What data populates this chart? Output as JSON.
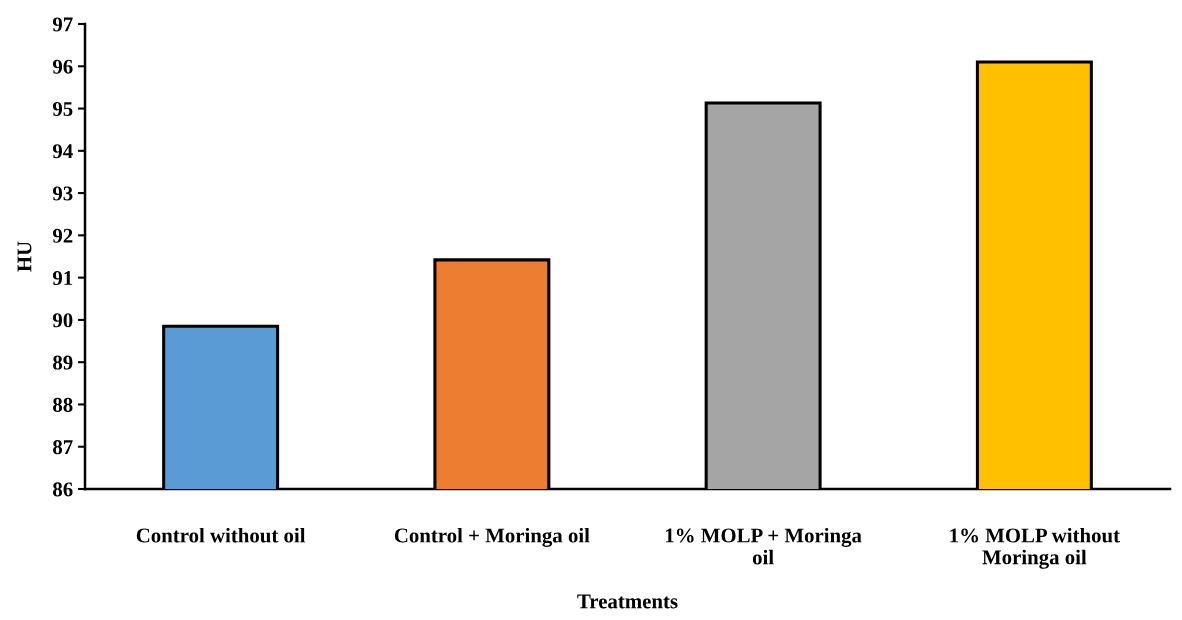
{
  "chart_data": {
    "type": "bar",
    "xlabel": "Treatments",
    "ylabel": "HU",
    "categories": [
      "Control without oil",
      "Control + Moringa oil",
      "1% MOLP + Moringa\noil",
      "1% MOLP without\nMoringa oil"
    ],
    "values": [
      89.85,
      91.42,
      95.13,
      96.1
    ],
    "colors": [
      "#5b9bd5",
      "#ed7d31",
      "#a5a5a5",
      "#ffc000"
    ],
    "ylim": [
      86,
      97
    ],
    "yticks": [
      86,
      87,
      88,
      89,
      90,
      91,
      92,
      93,
      94,
      95,
      96,
      97
    ],
    "grid": false
  }
}
